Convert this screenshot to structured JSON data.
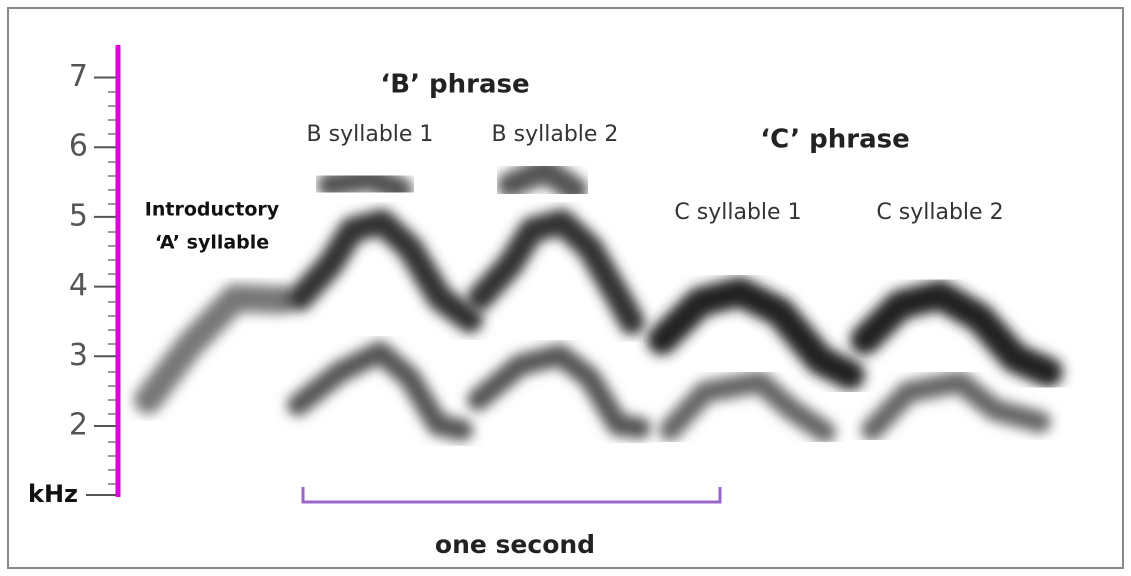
{
  "axis": {
    "ticks": [
      7,
      6,
      5,
      4,
      3,
      2
    ],
    "unit": "kHz"
  },
  "annotations": {
    "intro_line1": "Introductory",
    "intro_line2": "‘A’ syllable",
    "phrase_b": "‘B’ phrase",
    "b_syllable_1": "B syllable 1",
    "b_syllable_2": "B syllable 2",
    "phrase_c": "‘C’ phrase",
    "c_syllable_1": "C syllable 1",
    "c_syllable_2": "C syllable 2"
  },
  "scale_bar": "one second"
}
